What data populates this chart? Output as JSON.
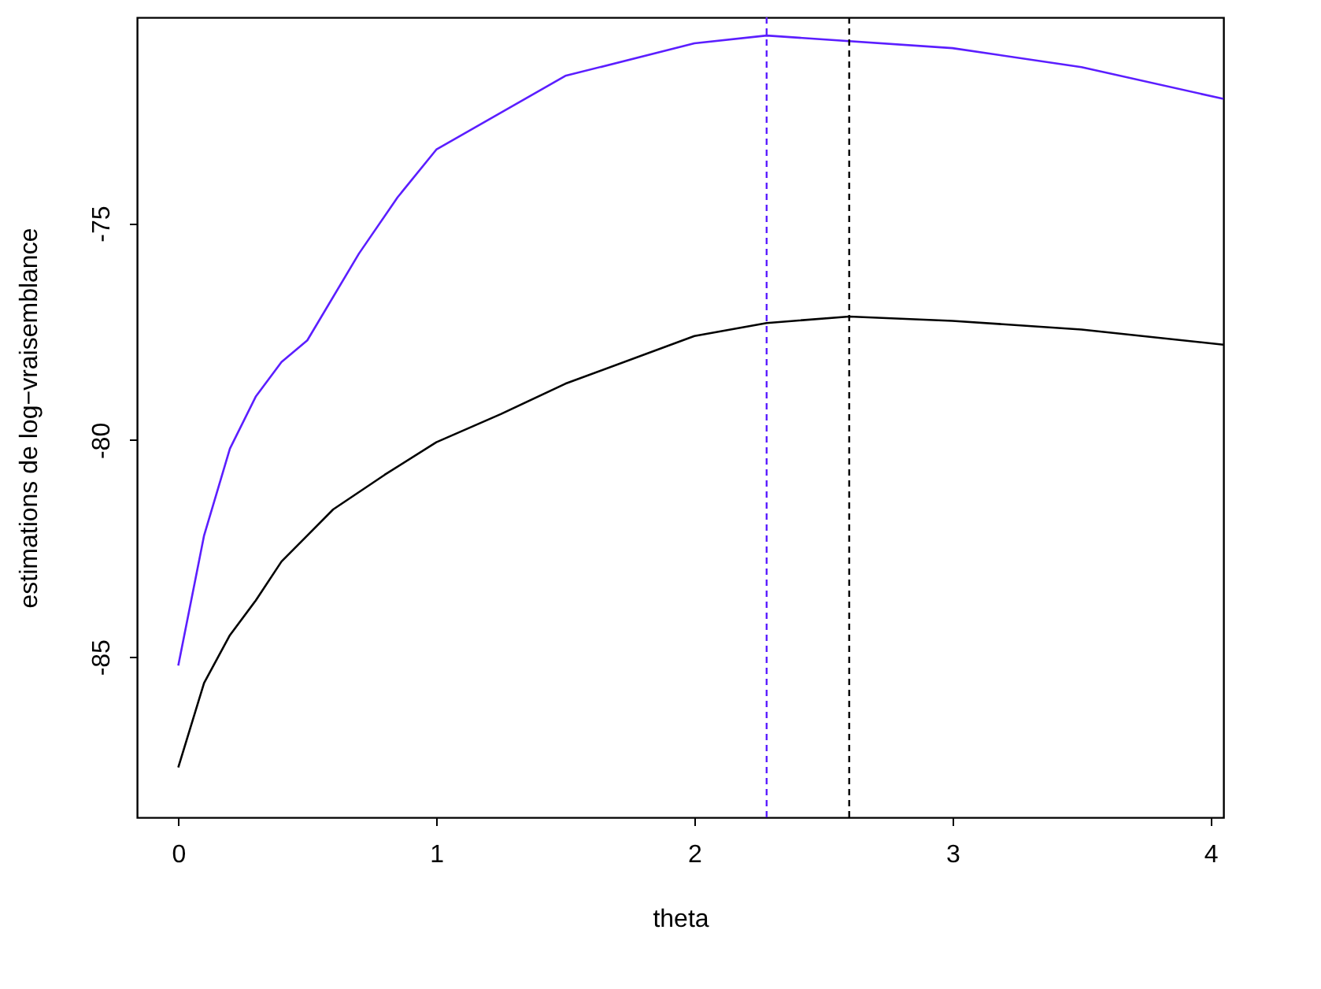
{
  "chart_data": {
    "type": "line",
    "xlabel": "theta",
    "ylabel": "estimations de log−vraisemblance",
    "xlim": [
      -0.16,
      4.05
    ],
    "ylim": [
      -88.7,
      -70.25
    ],
    "xticks": [
      0,
      1,
      2,
      3,
      4
    ],
    "yticks": [
      -85,
      -80,
      -75
    ],
    "grid": false,
    "marker": "none",
    "line_style": "solid",
    "series": [
      {
        "color": "#5b1eff",
        "x": [
          0,
          0.05,
          0.1,
          0.2,
          0.3,
          0.4,
          0.5,
          0.7,
          0.85,
          1,
          1.5,
          2,
          2.28,
          3,
          3.5,
          4.05
        ],
        "values": [
          -85.2,
          -83.7,
          -82.2,
          -80.2,
          -79.0,
          -78.2,
          -77.7,
          -75.7,
          -74.4,
          -73.3,
          -71.6,
          -70.85,
          -70.67,
          -70.96,
          -71.4,
          -72.13
        ]
      },
      {
        "color": "#000000",
        "x": [
          0,
          0.1,
          0.2,
          0.3,
          0.4,
          0.5,
          0.6,
          0.8,
          1,
          1.25,
          1.5,
          2,
          2.28,
          2.6,
          3,
          3.5,
          4.05
        ],
        "values": [
          -87.55,
          -85.6,
          -84.5,
          -83.7,
          -82.8,
          -82.2,
          -81.6,
          -80.8,
          -80.05,
          -79.4,
          -78.7,
          -77.6,
          -77.3,
          -77.15,
          -77.25,
          -77.45,
          -77.8
        ]
      }
    ],
    "ref_lines": [
      {
        "axis": "x",
        "value": 2.28,
        "color": "#5b1eff",
        "line_style": "dashed"
      },
      {
        "axis": "x",
        "value": 2.6,
        "color": "#000000",
        "line_style": "dashed"
      }
    ]
  }
}
